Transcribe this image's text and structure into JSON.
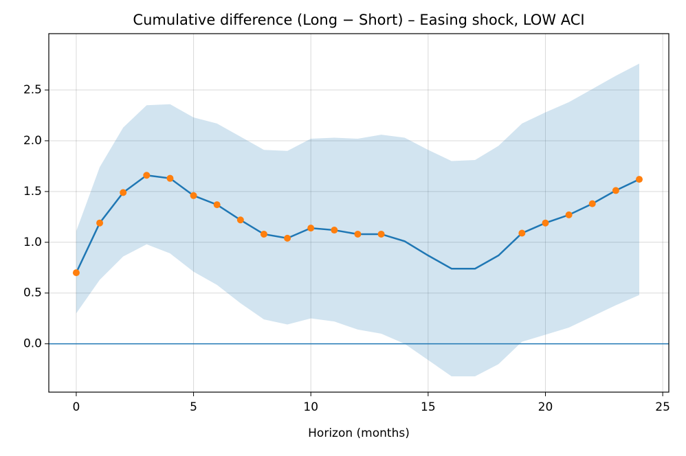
{
  "chart_data": {
    "type": "line",
    "title": "Cumulative difference (Long − Short) – Easing shock, LOW ACI",
    "x_label": "Horizon (months)",
    "x": [
      0,
      1,
      2,
      3,
      4,
      5,
      6,
      7,
      8,
      9,
      10,
      11,
      12,
      13,
      14,
      15,
      16,
      17,
      18,
      19,
      20,
      21,
      22,
      23,
      24
    ],
    "series": [
      {
        "color": "#1f77b4",
        "values": [
          0.7,
          1.19,
          1.49,
          1.66,
          1.63,
          1.46,
          1.37,
          1.22,
          1.08,
          1.04,
          1.14,
          1.12,
          1.08,
          1.08,
          1.01,
          0.87,
          0.74,
          0.74,
          0.87,
          1.09,
          1.19,
          1.27,
          1.38,
          1.51,
          1.62
        ]
      },
      {
        "color": "#ff7f0e",
        "marker": "circle",
        "values": [
          0.7,
          1.19,
          1.49,
          1.66,
          1.63,
          1.46,
          1.37,
          1.22,
          1.08,
          1.04,
          1.14,
          1.12,
          1.08,
          1.08,
          null,
          null,
          null,
          null,
          null,
          1.09,
          1.19,
          1.27,
          1.38,
          1.51,
          1.62
        ]
      }
    ],
    "band": {
      "color": "#1f77b4",
      "opacity": 0.2,
      "upper": [
        1.11,
        1.74,
        2.13,
        2.35,
        2.36,
        2.23,
        2.17,
        2.04,
        1.91,
        1.9,
        2.02,
        2.03,
        2.02,
        2.06,
        2.03,
        1.91,
        1.8,
        1.81,
        1.95,
        2.17,
        2.28,
        2.38,
        2.51,
        2.64,
        2.76
      ],
      "lower": [
        0.3,
        0.63,
        0.86,
        0.98,
        0.89,
        0.71,
        0.58,
        0.4,
        0.24,
        0.19,
        0.25,
        0.22,
        0.14,
        0.1,
        0.0,
        -0.16,
        -0.32,
        -0.32,
        -0.2,
        0.02,
        0.09,
        0.16,
        0.27,
        0.38,
        0.48
      ]
    },
    "hline": {
      "value": 0,
      "color": "#1f77b4"
    },
    "xlim": [
      -1.17,
      25.26
    ],
    "ylim": [
      -0.476,
      3.055
    ],
    "xticks": [
      0,
      5,
      10,
      15,
      20,
      25
    ],
    "yticks": [
      {
        "value": 0,
        "label": "0.0"
      },
      {
        "value": 0.5,
        "label": "0.5"
      },
      {
        "value": 1,
        "label": "1.0"
      },
      {
        "value": 1.5,
        "label": "1.5"
      },
      {
        "value": 2,
        "label": "2.0"
      },
      {
        "value": 2.5,
        "label": "2.5"
      }
    ],
    "grid": true
  }
}
